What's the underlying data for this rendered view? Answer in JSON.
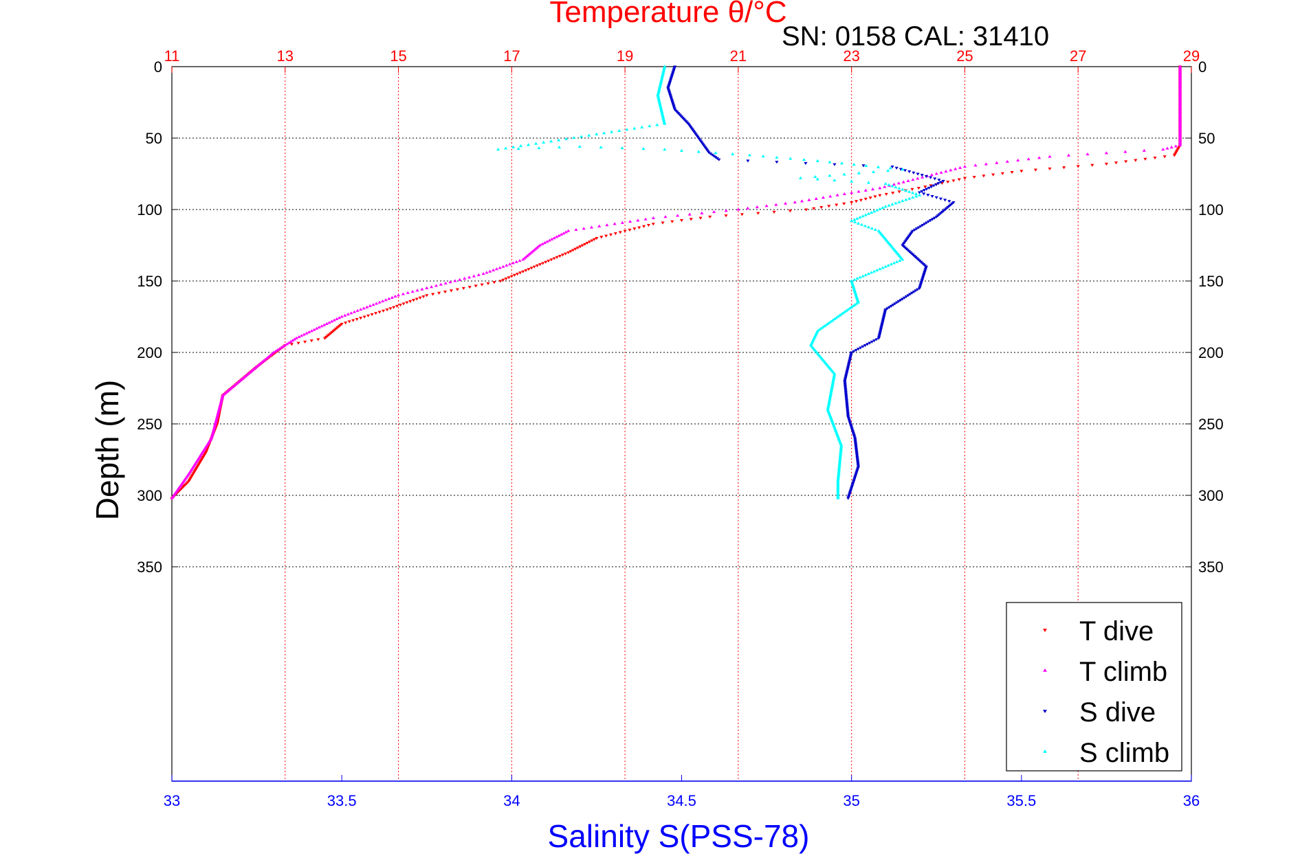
{
  "chart_data": {
    "type": "scatter",
    "title": "Temperature θ/°C",
    "subtitle": "SN: 0158  CAL: 31410",
    "xlabel_bottom": "Salinity S(PSS-78)",
    "ylabel": "Depth (m)",
    "x_top": {
      "label": "Temperature θ/°C",
      "range": [
        11,
        29
      ],
      "ticks": [
        11,
        13,
        15,
        17,
        19,
        21,
        23,
        25,
        27,
        29
      ],
      "color": "#ff0000"
    },
    "x_bottom": {
      "label": "Salinity S(PSS-78)",
      "range": [
        33,
        36
      ],
      "ticks": [
        33,
        33.5,
        34,
        34.5,
        35,
        35.5,
        36
      ],
      "tick_labels": [
        "33",
        "33.5",
        "34",
        "34.5",
        "35",
        "35.5",
        "36"
      ],
      "color": "#0000ff"
    },
    "y": {
      "range": [
        0,
        500
      ],
      "reversed": true,
      "ticks": [
        0,
        50,
        100,
        150,
        200,
        250,
        300,
        350
      ],
      "tick_labels": [
        "0",
        "50",
        "100",
        "150",
        "200",
        "250",
        "300",
        "350"
      ]
    },
    "grid": true,
    "legend_position": "bottom-right",
    "series": [
      {
        "name": "T dive",
        "axis": "temperature",
        "marker": "down-triangle",
        "color": "#ff0000",
        "points": [
          [
            28.8,
            0
          ],
          [
            28.8,
            20
          ],
          [
            28.8,
            40
          ],
          [
            28.8,
            55
          ],
          [
            28.7,
            62
          ],
          [
            27.5,
            68
          ],
          [
            26.0,
            73
          ],
          [
            25.0,
            78
          ],
          [
            24.3,
            84
          ],
          [
            23.5,
            90
          ],
          [
            23.0,
            95
          ],
          [
            22.2,
            100
          ],
          [
            20.5,
            105
          ],
          [
            19.5,
            110
          ],
          [
            18.5,
            120
          ],
          [
            18.0,
            130
          ],
          [
            17.4,
            140
          ],
          [
            16.8,
            150
          ],
          [
            15.5,
            160
          ],
          [
            14.8,
            170
          ],
          [
            14.0,
            180
          ],
          [
            13.7,
            190
          ],
          [
            13.0,
            195
          ],
          [
            12.5,
            210
          ],
          [
            11.9,
            230
          ],
          [
            11.8,
            250
          ],
          [
            11.6,
            270
          ],
          [
            11.3,
            290
          ],
          [
            11.0,
            302
          ]
        ]
      },
      {
        "name": "T climb",
        "axis": "temperature",
        "marker": "up-triangle",
        "color": "#ff00ff",
        "points": [
          [
            28.8,
            0
          ],
          [
            28.8,
            20
          ],
          [
            28.8,
            40
          ],
          [
            28.8,
            55
          ],
          [
            28.5,
            58
          ],
          [
            26.5,
            63
          ],
          [
            25.0,
            70
          ],
          [
            24.0,
            80
          ],
          [
            23.5,
            85
          ],
          [
            22.0,
            95
          ],
          [
            21.0,
            100
          ],
          [
            19.5,
            106
          ],
          [
            18.0,
            115
          ],
          [
            17.5,
            125
          ],
          [
            17.2,
            135
          ],
          [
            16.5,
            145
          ],
          [
            15.0,
            160
          ],
          [
            14.0,
            175
          ],
          [
            13.2,
            190
          ],
          [
            12.8,
            200
          ],
          [
            12.5,
            210
          ],
          [
            11.9,
            230
          ],
          [
            11.7,
            260
          ],
          [
            11.3,
            285
          ],
          [
            11.0,
            302
          ]
        ]
      },
      {
        "name": "S dive",
        "axis": "salinity",
        "marker": "down-triangle",
        "color": "#0000cc",
        "points": [
          [
            34.48,
            0
          ],
          [
            34.46,
            15
          ],
          [
            34.48,
            30
          ],
          [
            34.52,
            40
          ],
          [
            34.55,
            50
          ],
          [
            34.58,
            60
          ],
          [
            34.61,
            65
          ],
          [
            35.12,
            70
          ],
          [
            35.27,
            80
          ],
          [
            35.2,
            88
          ],
          [
            35.3,
            95
          ],
          [
            35.25,
            105
          ],
          [
            35.18,
            115
          ],
          [
            35.15,
            125
          ],
          [
            35.22,
            140
          ],
          [
            35.2,
            155
          ],
          [
            35.1,
            170
          ],
          [
            35.08,
            190
          ],
          [
            35.0,
            200
          ],
          [
            34.98,
            220
          ],
          [
            34.99,
            245
          ],
          [
            35.01,
            260
          ],
          [
            35.02,
            280
          ],
          [
            34.99,
            302
          ]
        ]
      },
      {
        "name": "S climb",
        "axis": "salinity",
        "marker": "up-triangle",
        "color": "#00ffff",
        "points": [
          [
            34.45,
            0
          ],
          [
            34.43,
            20
          ],
          [
            34.45,
            40
          ],
          [
            33.96,
            58
          ],
          [
            34.2,
            56
          ],
          [
            34.45,
            58
          ],
          [
            34.7,
            62
          ],
          [
            34.9,
            66
          ],
          [
            35.15,
            72
          ],
          [
            34.85,
            78
          ],
          [
            35.1,
            82
          ],
          [
            35.2,
            90
          ],
          [
            35.1,
            98
          ],
          [
            35.0,
            108
          ],
          [
            35.08,
            115
          ],
          [
            35.15,
            135
          ],
          [
            35.0,
            150
          ],
          [
            35.02,
            165
          ],
          [
            34.9,
            185
          ],
          [
            34.88,
            195
          ],
          [
            34.95,
            215
          ],
          [
            34.93,
            240
          ],
          [
            34.97,
            265
          ],
          [
            34.96,
            290
          ],
          [
            34.96,
            302
          ]
        ]
      }
    ]
  },
  "legend": {
    "items": [
      {
        "label": "T dive",
        "color": "#ff0000",
        "marker": "down-triangle"
      },
      {
        "label": "T climb",
        "color": "#ff00ff",
        "marker": "up-triangle"
      },
      {
        "label": "S dive",
        "color": "#0000cc",
        "marker": "down-triangle"
      },
      {
        "label": "S climb",
        "color": "#00ffff",
        "marker": "up-triangle"
      }
    ]
  }
}
